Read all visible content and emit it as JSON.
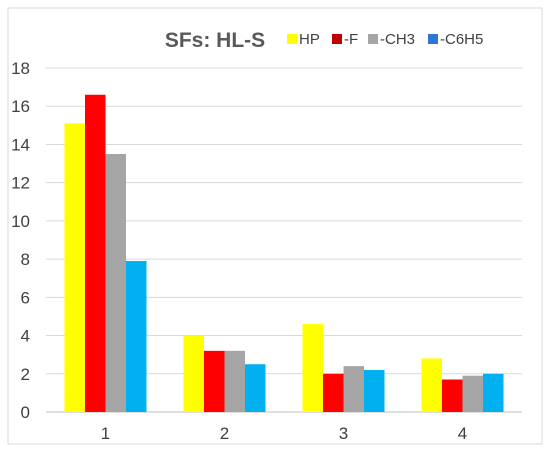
{
  "chart_data": {
    "type": "bar",
    "title": "SFs: HL-S",
    "xlabel": "",
    "ylabel": "",
    "categories": [
      "1",
      "2",
      "3",
      "4"
    ],
    "ylim": [
      0,
      18
    ],
    "yticks": [
      0,
      2,
      4,
      6,
      8,
      10,
      12,
      14,
      16,
      18
    ],
    "grid": true,
    "legend_position": "top-right",
    "series": [
      {
        "name": "HP",
        "color": "#ffff00",
        "values": [
          15.1,
          4.0,
          4.6,
          2.8
        ]
      },
      {
        "name": "-F",
        "color": "#ff0000",
        "legend_color": "#c00000",
        "values": [
          16.6,
          3.2,
          2.0,
          1.7
        ]
      },
      {
        "name": "-CH3",
        "color": "#a5a5a5",
        "values": [
          13.5,
          3.2,
          2.4,
          1.9
        ]
      },
      {
        "name": "-C6H5",
        "color": "#00b0f0",
        "legend_color": "#2e75d6",
        "values": [
          7.9,
          2.5,
          2.2,
          2.0
        ]
      }
    ]
  }
}
